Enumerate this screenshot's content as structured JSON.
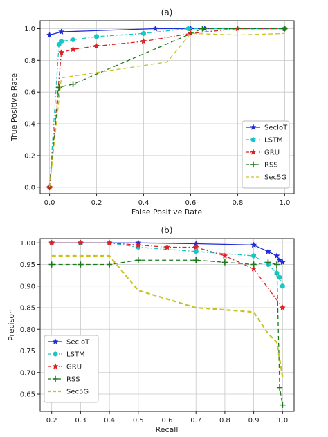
{
  "chart_data": [
    {
      "type": "line",
      "title": "(a)",
      "xlabel": "False Positive Rate",
      "ylabel": "True Positive Rate",
      "xlim": [
        -0.04,
        1.04
      ],
      "ylim": [
        -0.04,
        1.05
      ],
      "xticks": [
        "0.0",
        "0.2",
        "0.4",
        "0.6",
        "0.8",
        "1.0"
      ],
      "yticks": [
        "0.0",
        "0.2",
        "0.4",
        "0.6",
        "0.8",
        "1.0"
      ],
      "grid": true,
      "legend_position": "bottom-right",
      "series": [
        {
          "name": "SecIoT",
          "color": "#1f2bd6",
          "dash": "solid",
          "marker": "star",
          "x": [
            0.0,
            0.05,
            0.45,
            0.6,
            0.66,
            1.0
          ],
          "y": [
            0.96,
            0.98,
            1.0,
            1.0,
            1.0,
            1.0
          ]
        },
        {
          "name": "LSTM",
          "color": "#17c7c7",
          "dash": "dashdot",
          "marker": "hexagon",
          "x": [
            0.0,
            0.04,
            0.05,
            0.1,
            0.2,
            0.4,
            0.59,
            1.0
          ],
          "y": [
            0.0,
            0.9,
            0.92,
            0.93,
            0.95,
            0.97,
            1.0,
            1.0
          ]
        },
        {
          "name": "GRU",
          "color": "#e02020",
          "dash": "dashdot",
          "marker": "star",
          "x": [
            0.0,
            0.05,
            0.1,
            0.2,
            0.4,
            0.6,
            0.8,
            1.0
          ],
          "y": [
            0.0,
            0.85,
            0.87,
            0.89,
            0.92,
            0.97,
            1.0,
            1.0
          ]
        },
        {
          "name": "RSS",
          "color": "#1a7a1a",
          "dash": "dashed",
          "marker": "plus",
          "x": [
            0.0,
            0.04,
            0.1,
            0.65,
            1.0
          ],
          "y": [
            0.0,
            0.63,
            0.65,
            1.0,
            1.0
          ]
        },
        {
          "name": "Sec5G",
          "color": "#c9c21a",
          "dash": "dashed",
          "marker": "none",
          "x": [
            0.0,
            0.05,
            0.5,
            0.6,
            0.8,
            1.0
          ],
          "y": [
            0.0,
            0.69,
            0.79,
            0.97,
            0.96,
            0.97
          ]
        }
      ]
    },
    {
      "type": "line",
      "title": "(b)",
      "xlabel": "Recall",
      "ylabel": "Precison",
      "xlim": [
        0.16,
        1.04
      ],
      "ylim": [
        0.61,
        1.01
      ],
      "xticks": [
        "0.2",
        "0.3",
        "0.4",
        "0.5",
        "0.6",
        "0.7",
        "0.8",
        "0.9",
        "1.0"
      ],
      "yticks": [
        "0.65",
        "0.70",
        "0.75",
        "0.80",
        "0.85",
        "0.90",
        "0.95",
        "1.00"
      ],
      "grid": true,
      "legend_position": "bottom-left",
      "series": [
        {
          "name": "SecIoT",
          "color": "#1f2bd6",
          "dash": "solid",
          "marker": "star",
          "x": [
            0.2,
            0.3,
            0.4,
            0.5,
            0.7,
            0.9,
            0.95,
            0.98,
            0.99,
            1.0
          ],
          "y": [
            1.0,
            1.0,
            1.0,
            1.0,
            0.998,
            0.995,
            0.98,
            0.97,
            0.96,
            0.955
          ]
        },
        {
          "name": "LSTM",
          "color": "#17c7c7",
          "dash": "dashdot",
          "marker": "hexagon",
          "x": [
            0.2,
            0.3,
            0.4,
            0.5,
            0.7,
            0.9,
            0.95,
            0.98,
            0.99,
            1.0
          ],
          "y": [
            1.0,
            1.0,
            1.0,
            0.99,
            0.98,
            0.97,
            0.95,
            0.93,
            0.92,
            0.9
          ]
        },
        {
          "name": "GRU",
          "color": "#e02020",
          "dash": "dashdot",
          "marker": "star",
          "x": [
            0.2,
            0.3,
            0.4,
            0.5,
            0.6,
            0.7,
            0.8,
            0.9,
            1.0
          ],
          "y": [
            1.0,
            1.0,
            1.0,
            0.995,
            0.99,
            0.99,
            0.97,
            0.94,
            0.85
          ]
        },
        {
          "name": "RSS",
          "color": "#1a7a1a",
          "dash": "dashed",
          "marker": "plus",
          "x": [
            0.2,
            0.3,
            0.4,
            0.5,
            0.7,
            0.8,
            0.9,
            0.95,
            0.98,
            0.99,
            1.0
          ],
          "y": [
            0.95,
            0.95,
            0.95,
            0.96,
            0.96,
            0.955,
            0.95,
            0.955,
            0.95,
            0.665,
            0.625
          ]
        },
        {
          "name": "Sec5G",
          "color": "#c9c21a",
          "dash": "dashed",
          "marker": "none",
          "x": [
            0.2,
            0.4,
            0.5,
            0.7,
            0.9,
            0.95,
            0.98,
            1.0
          ],
          "y": [
            0.97,
            0.97,
            0.89,
            0.85,
            0.84,
            0.79,
            0.77,
            0.69
          ]
        }
      ]
    }
  ]
}
